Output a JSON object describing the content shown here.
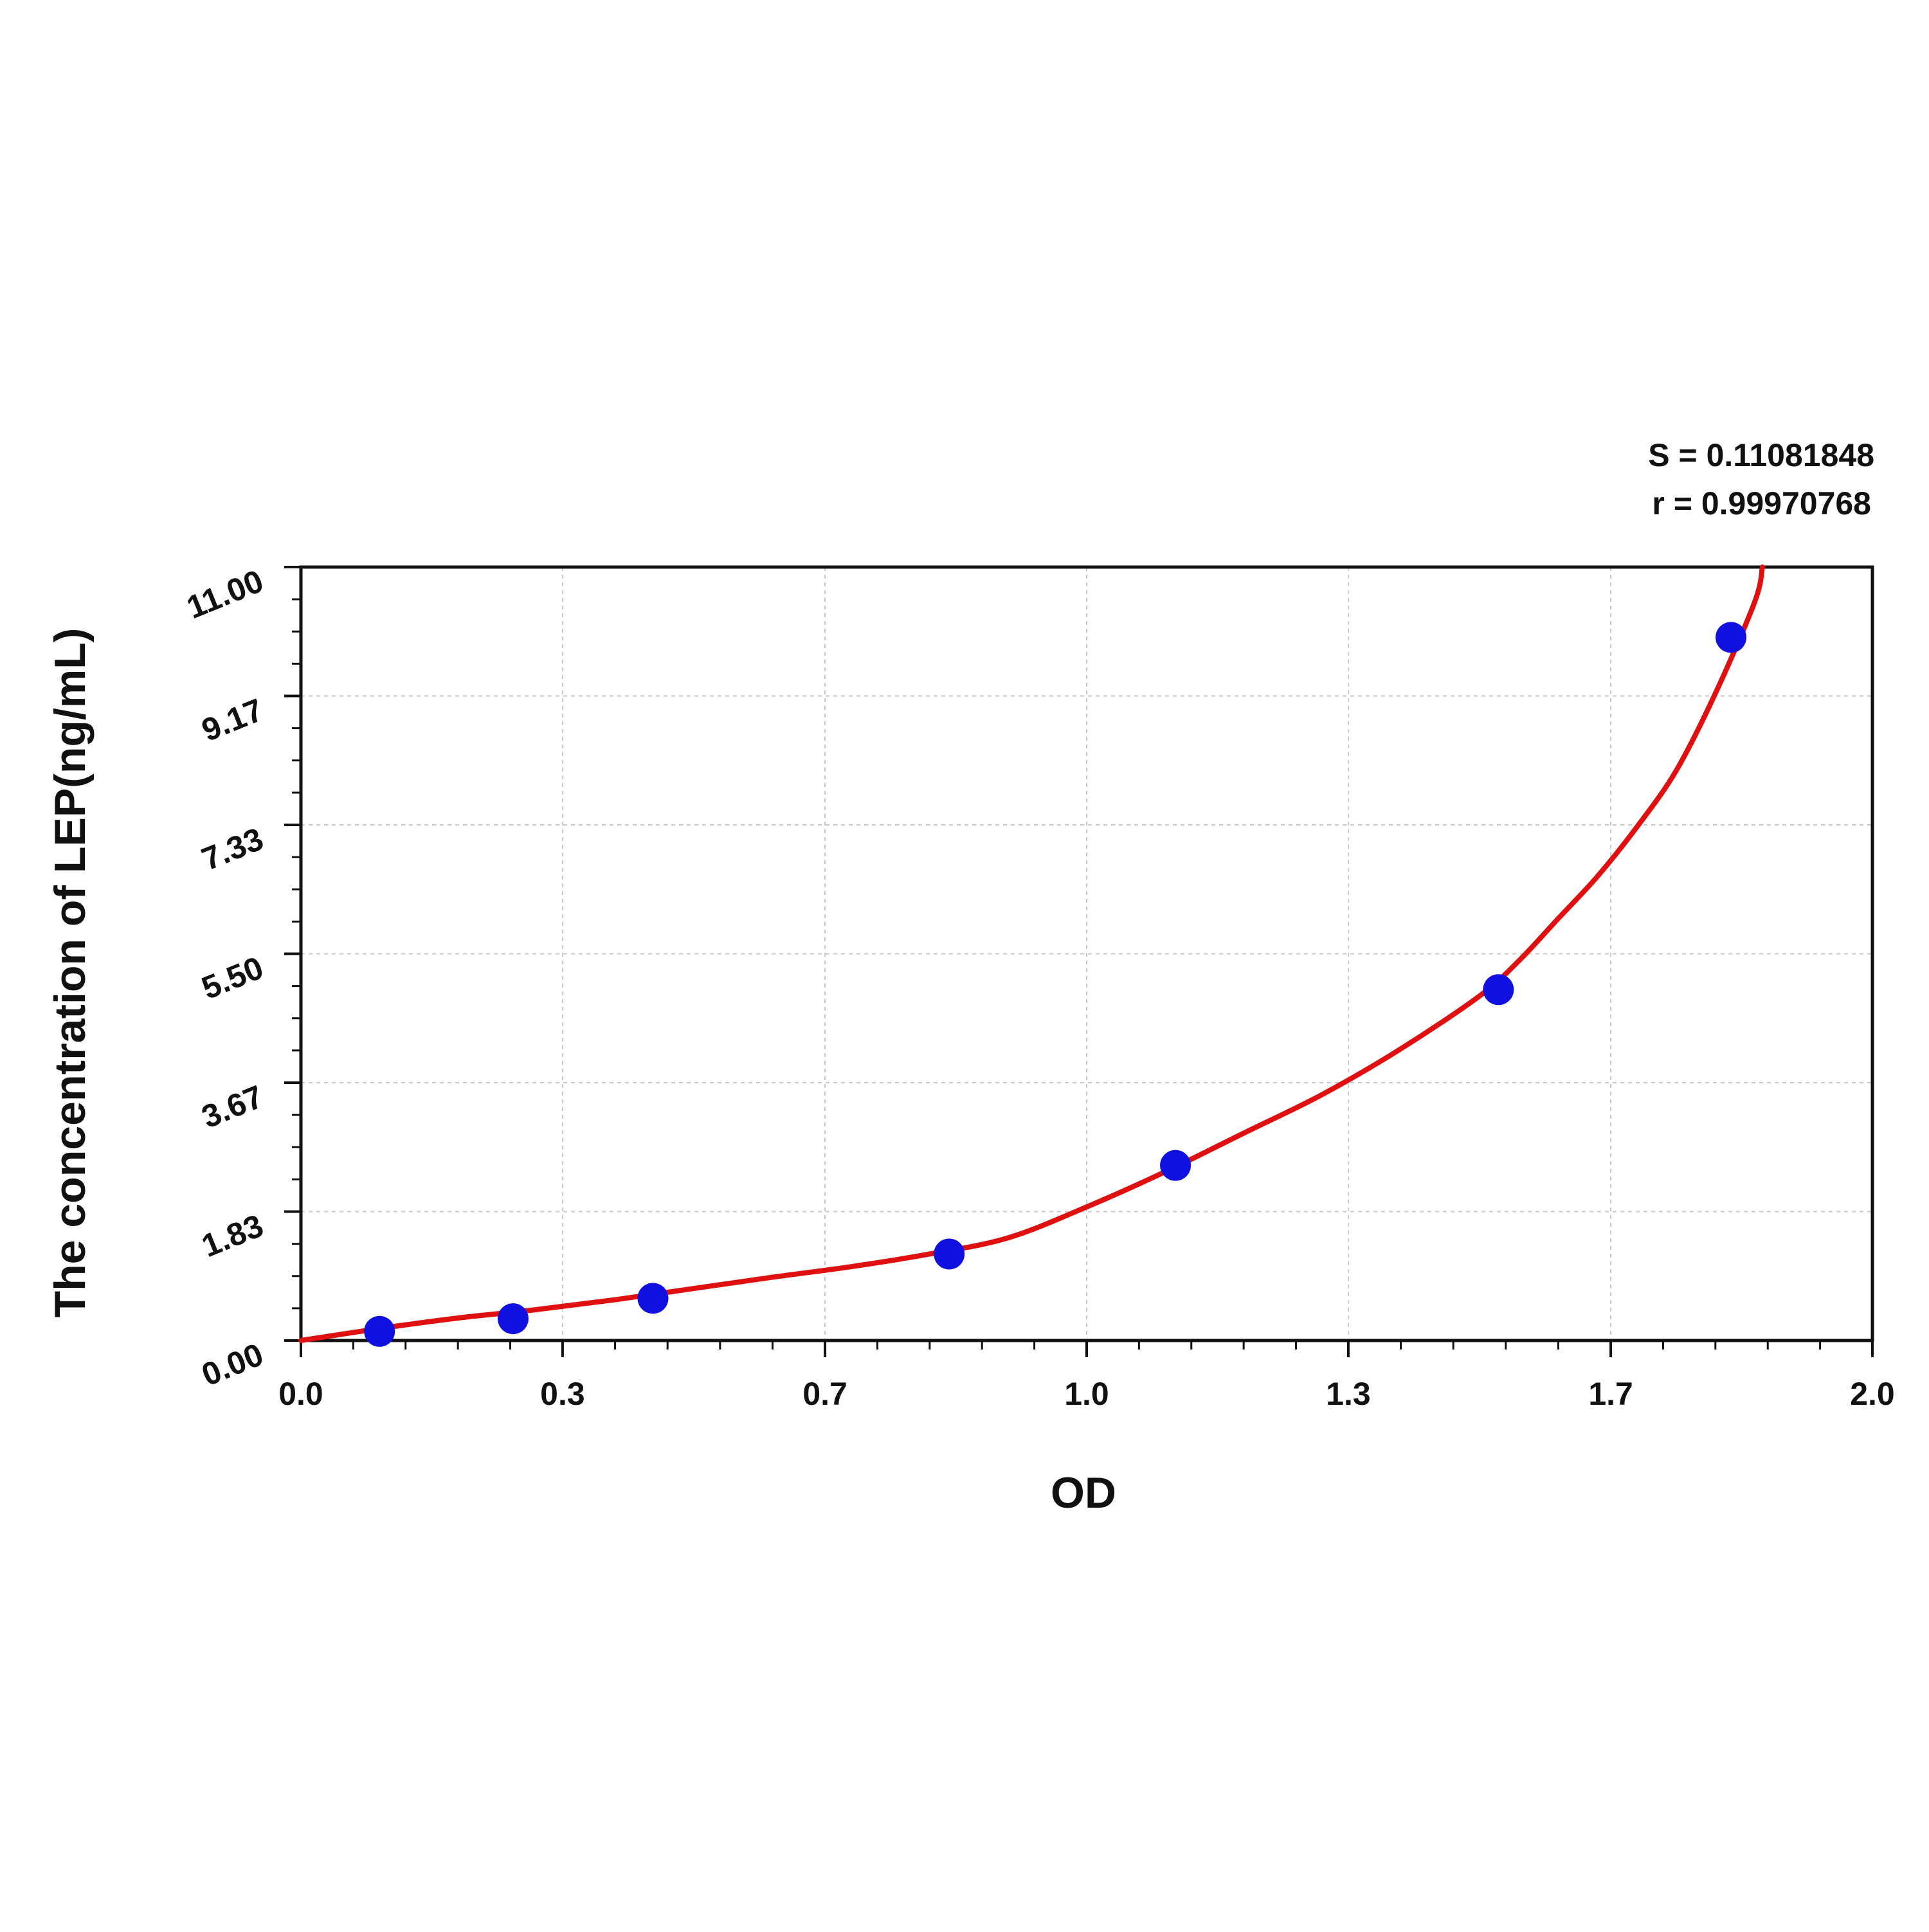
{
  "chart_data": {
    "type": "scatter",
    "title": "",
    "xlabel": "OD",
    "ylabel": "The concentration of LEP(ng/mL)",
    "xlim": [
      0.0,
      2.0
    ],
    "ylim": [
      0.0,
      11.0
    ],
    "x_ticks": [
      "0.0",
      "0.3",
      "0.7",
      "1.0",
      "1.3",
      "1.7",
      "2.0"
    ],
    "x_tick_values": [
      0.0,
      0.333,
      0.667,
      1.0,
      1.333,
      1.667,
      2.0
    ],
    "y_ticks": [
      "0.00",
      "1.83",
      "3.67",
      "5.50",
      "7.33",
      "9.17",
      "11.00"
    ],
    "y_tick_values": [
      0.0,
      1.833,
      3.667,
      5.5,
      7.333,
      9.167,
      11.0
    ],
    "grid": true,
    "series": [
      {
        "kind": "points",
        "color": "#1010e0",
        "x": [
          0.1,
          0.27,
          0.448,
          0.825,
          1.113,
          1.524,
          1.82
        ],
        "y": [
          0.13,
          0.31,
          0.6,
          1.23,
          2.49,
          4.99,
          10.0
        ]
      },
      {
        "kind": "fit-curve",
        "color": "#e01010",
        "x": [
          0.0,
          0.1,
          0.2,
          0.3,
          0.4,
          0.5,
          0.6,
          0.7,
          0.8,
          0.9,
          1.0,
          1.1,
          1.2,
          1.3,
          1.4,
          1.5,
          1.55,
          1.6,
          1.65,
          1.7,
          1.75,
          1.8,
          1.85,
          1.86
        ],
        "y": [
          0.0,
          0.17,
          0.32,
          0.44,
          0.58,
          0.74,
          0.9,
          1.05,
          1.23,
          1.46,
          1.9,
          2.4,
          2.95,
          3.5,
          4.15,
          4.9,
          5.4,
          6.0,
          6.6,
          7.3,
          8.1,
          9.2,
          10.5,
          11.0
        ]
      }
    ],
    "annotations": {
      "s_value": "S = 0.11081848",
      "r_value": "r = 0.99970768"
    }
  }
}
